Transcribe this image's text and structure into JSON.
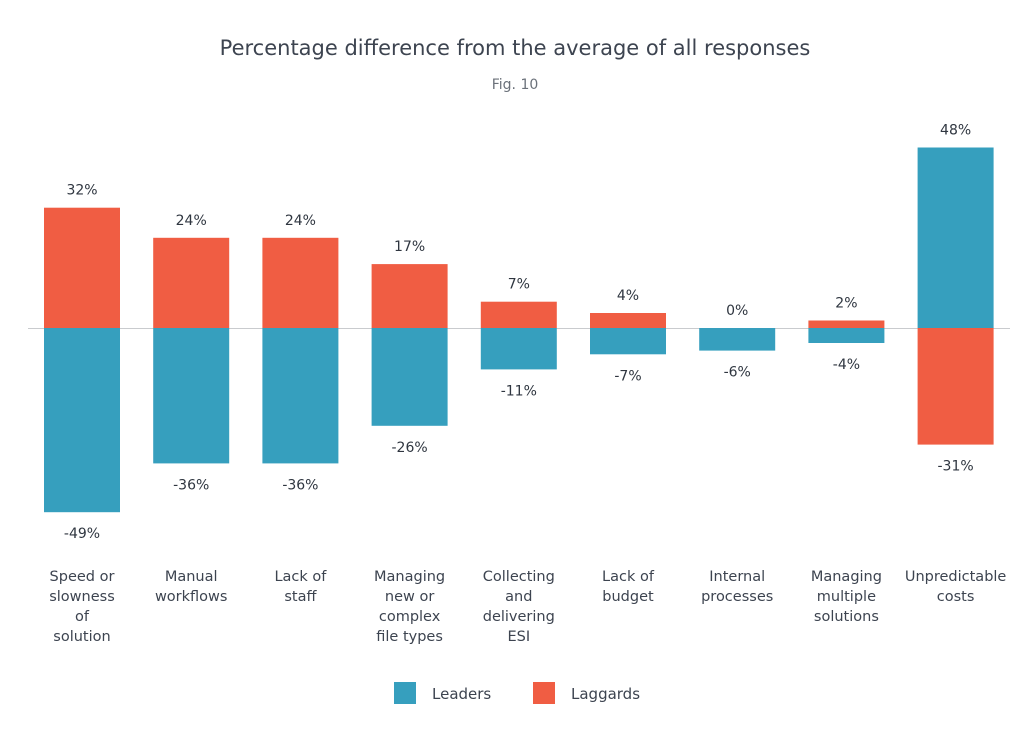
{
  "chart_data": {
    "type": "bar",
    "title": "Percentage difference from the average of all responses",
    "subtitle": "Fig. 10",
    "categories": [
      "Speed or slowness of solution",
      "Manual workflows",
      "Lack of staff",
      "Managing new or complex file types",
      "Collecting and delivering ESI",
      "Lack of budget",
      "Internal processes",
      "Managing multiple solutions",
      "Unpredictable costs"
    ],
    "category_lines": [
      [
        "Speed or",
        "slowness",
        "of",
        "solution"
      ],
      [
        "Manual",
        "workflows"
      ],
      [
        "Lack of",
        "staff"
      ],
      [
        "Managing",
        "new or",
        "complex",
        "file types"
      ],
      [
        "Collecting",
        "and",
        "delivering",
        "ESI"
      ],
      [
        "Lack of",
        "budget"
      ],
      [
        "Internal",
        "processes"
      ],
      [
        "Managing",
        "multiple",
        "solutions"
      ],
      [
        "Unpredictable",
        "costs"
      ]
    ],
    "series": [
      {
        "name": "Leaders",
        "color": "#369fbe",
        "values": [
          -49,
          -36,
          -36,
          -26,
          -11,
          -7,
          -6,
          -4,
          48
        ],
        "labels": [
          "-49%",
          "-36%",
          "-36%",
          "-26%",
          "-11%",
          "-7%",
          "-6%",
          "-4%",
          "48%"
        ]
      },
      {
        "name": "Laggards",
        "color": "#f05d43",
        "values": [
          32,
          24,
          24,
          17,
          7,
          4,
          0,
          2,
          -31
        ],
        "labels": [
          "32%",
          "24%",
          "24%",
          "17%",
          "7%",
          "4%",
          "0%",
          "2%",
          "-31%"
        ]
      }
    ],
    "xlabel": "",
    "ylabel": "",
    "ylim": [
      -55,
      55
    ],
    "grid": false,
    "legend": "bottom-center"
  }
}
